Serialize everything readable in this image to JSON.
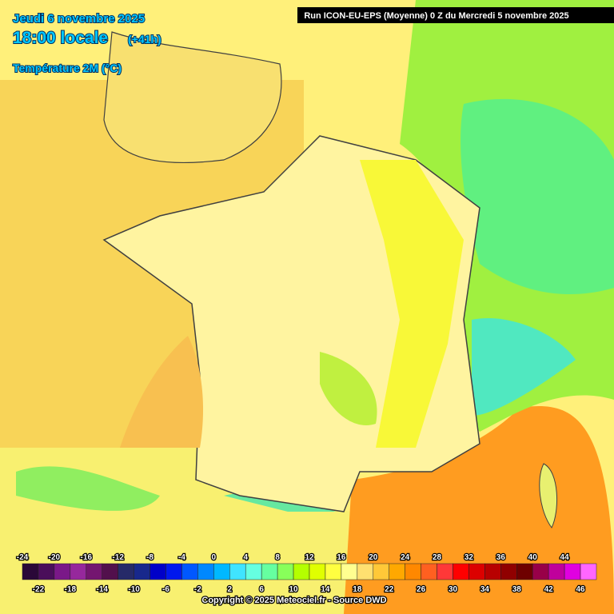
{
  "header": {
    "date": "Jeudi 6 novembre 2025",
    "time": "18:00 locale",
    "lead": "(+41h)",
    "parameter": "Température 2M (°C)",
    "run": "Run ICON-EU-EPS (Moyenne) 0 Z du Mercredi 5 novembre 2025"
  },
  "legend": {
    "ticks": [
      -24,
      -22,
      -20,
      -18,
      -16,
      -14,
      -12,
      -10,
      -8,
      -6,
      -4,
      -2,
      0,
      2,
      4,
      6,
      8,
      10,
      12,
      14,
      16,
      18,
      20,
      22,
      24,
      26,
      28,
      30,
      32,
      34,
      36,
      38,
      40,
      42,
      44,
      46
    ],
    "colors": [
      "#2a0838",
      "#4a0e5a",
      "#7a1888",
      "#96289c",
      "#741670",
      "#52104c",
      "#262a68",
      "#18288c",
      "#0000c8",
      "#0018ee",
      "#0058ff",
      "#0088ff",
      "#00b8ff",
      "#40e4ff",
      "#66ffe0",
      "#66ffa0",
      "#88ff5a",
      "#b4ff00",
      "#e0ff00",
      "#ffff40",
      "#ffff90",
      "#ffe070",
      "#ffc838",
      "#ffa800",
      "#ff8800",
      "#ff6020",
      "#ff3838",
      "#ff0000",
      "#dc0000",
      "#b80000",
      "#900000",
      "#6e0000",
      "#980048",
      "#c0009c",
      "#e000e0",
      "#ff66ff"
    ]
  },
  "footer": {
    "copyright": "Copyright © 2025 Meteociel.fr - Source DWD"
  }
}
